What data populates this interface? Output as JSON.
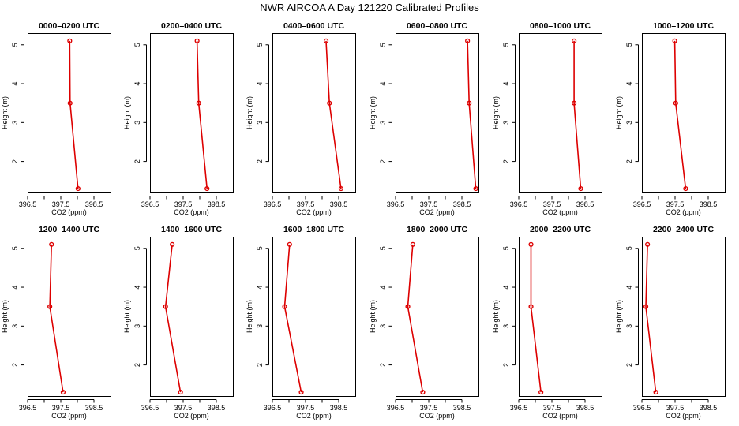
{
  "figure": {
    "title": "NWR AIRCOA A  Day 121220  Calibrated Profiles",
    "series_color": "#dd0000"
  },
  "chart_data": [
    {
      "type": "line",
      "title": "0000–0200 UTC",
      "xlabel": "CO2 (ppm)",
      "ylabel": "Height (m)",
      "xlim": [
        396.5,
        399.0
      ],
      "ylim": [
        1.2,
        5.3
      ],
      "x_ticks": [
        "396.5",
        "397.5",
        "398.5"
      ],
      "y_ticks": [
        "2",
        "3",
        "4",
        "5"
      ],
      "x": [
        398.02,
        397.78,
        397.77
      ],
      "y": [
        1.3,
        3.5,
        5.1
      ]
    },
    {
      "type": "line",
      "title": "0200–0400 UTC",
      "xlabel": "CO2 (ppm)",
      "ylabel": "Height (m)",
      "xlim": [
        396.5,
        399.0
      ],
      "ylim": [
        1.2,
        5.3
      ],
      "x_ticks": [
        "396.5",
        "397.5",
        "398.5"
      ],
      "y_ticks": [
        "2",
        "3",
        "4",
        "5"
      ],
      "x": [
        398.22,
        397.97,
        397.92
      ],
      "y": [
        1.3,
        3.5,
        5.1
      ]
    },
    {
      "type": "line",
      "title": "0400–0600 UTC",
      "xlabel": "CO2 (ppm)",
      "ylabel": "Height (m)",
      "xlim": [
        396.5,
        399.0
      ],
      "ylim": [
        1.2,
        5.3
      ],
      "x_ticks": [
        "396.5",
        "397.5",
        "398.5"
      ],
      "y_ticks": [
        "2",
        "3",
        "4",
        "5"
      ],
      "x": [
        398.57,
        398.22,
        398.12
      ],
      "y": [
        1.3,
        3.5,
        5.1
      ]
    },
    {
      "type": "line",
      "title": "0600–0800 UTC",
      "xlabel": "CO2 (ppm)",
      "ylabel": "Height (m)",
      "xlim": [
        396.5,
        399.0
      ],
      "ylim": [
        1.2,
        5.3
      ],
      "x_ticks": [
        "396.5",
        "397.5",
        "398.5"
      ],
      "y_ticks": [
        "2",
        "3",
        "4",
        "5"
      ],
      "x": [
        398.92,
        398.72,
        398.67
      ],
      "y": [
        1.3,
        3.5,
        5.1
      ]
    },
    {
      "type": "line",
      "title": "0800–1000 UTC",
      "xlabel": "CO2 (ppm)",
      "ylabel": "Height (m)",
      "xlim": [
        396.5,
        399.0
      ],
      "ylim": [
        1.2,
        5.3
      ],
      "x_ticks": [
        "396.5",
        "397.5",
        "398.5"
      ],
      "y_ticks": [
        "2",
        "3",
        "4",
        "5"
      ],
      "x": [
        398.37,
        398.17,
        398.17
      ],
      "y": [
        1.3,
        3.5,
        5.1
      ]
    },
    {
      "type": "line",
      "title": "1000–1200 UTC",
      "xlabel": "CO2 (ppm)",
      "ylabel": "Height (m)",
      "xlim": [
        396.5,
        399.0
      ],
      "ylim": [
        1.2,
        5.3
      ],
      "x_ticks": [
        "396.5",
        "397.5",
        "398.5"
      ],
      "y_ticks": [
        "2",
        "3",
        "4",
        "5"
      ],
      "x": [
        397.82,
        397.52,
        397.49
      ],
      "y": [
        1.3,
        3.5,
        5.1
      ]
    },
    {
      "type": "line",
      "title": "1200–1400 UTC",
      "xlabel": "CO2 (ppm)",
      "ylabel": "Height (m)",
      "xlim": [
        396.5,
        399.0
      ],
      "ylim": [
        1.2,
        5.3
      ],
      "x_ticks": [
        "396.5",
        "397.5",
        "398.5"
      ],
      "y_ticks": [
        "2",
        "3",
        "4",
        "5"
      ],
      "x": [
        397.57,
        397.17,
        397.22
      ],
      "y": [
        1.3,
        3.5,
        5.1
      ]
    },
    {
      "type": "line",
      "title": "1400–1600 UTC",
      "xlabel": "CO2 (ppm)",
      "ylabel": "Height (m)",
      "xlim": [
        396.5,
        399.0
      ],
      "ylim": [
        1.2,
        5.3
      ],
      "x_ticks": [
        "396.5",
        "397.5",
        "398.5"
      ],
      "y_ticks": [
        "2",
        "3",
        "4",
        "5"
      ],
      "x": [
        397.42,
        396.97,
        397.17
      ],
      "y": [
        1.3,
        3.5,
        5.1
      ]
    },
    {
      "type": "line",
      "title": "1600–1800 UTC",
      "xlabel": "CO2 (ppm)",
      "ylabel": "Height (m)",
      "xlim": [
        396.5,
        399.0
      ],
      "ylim": [
        1.2,
        5.3
      ],
      "x_ticks": [
        "396.5",
        "397.5",
        "398.5"
      ],
      "y_ticks": [
        "2",
        "3",
        "4",
        "5"
      ],
      "x": [
        397.37,
        396.87,
        397.02
      ],
      "y": [
        1.3,
        3.5,
        5.1
      ]
    },
    {
      "type": "line",
      "title": "1800–2000 UTC",
      "xlabel": "CO2 (ppm)",
      "ylabel": "Height (m)",
      "xlim": [
        396.5,
        399.0
      ],
      "ylim": [
        1.2,
        5.3
      ],
      "x_ticks": [
        "396.5",
        "397.5",
        "398.5"
      ],
      "y_ticks": [
        "2",
        "3",
        "4",
        "5"
      ],
      "x": [
        397.32,
        396.87,
        397.02
      ],
      "y": [
        1.3,
        3.5,
        5.1
      ]
    },
    {
      "type": "line",
      "title": "2000–2200 UTC",
      "xlabel": "CO2 (ppm)",
      "ylabel": "Height (m)",
      "xlim": [
        396.5,
        399.0
      ],
      "ylim": [
        1.2,
        5.3
      ],
      "x_ticks": [
        "396.5",
        "397.5",
        "398.5"
      ],
      "y_ticks": [
        "2",
        "3",
        "4",
        "5"
      ],
      "x": [
        397.17,
        396.87,
        396.87
      ],
      "y": [
        1.3,
        3.5,
        5.1
      ]
    },
    {
      "type": "line",
      "title": "2200–2400 UTC",
      "xlabel": "CO2 (ppm)",
      "ylabel": "Height (m)",
      "xlim": [
        396.5,
        399.0
      ],
      "ylim": [
        1.2,
        5.3
      ],
      "x_ticks": [
        "396.5",
        "397.5",
        "398.5"
      ],
      "y_ticks": [
        "2",
        "3",
        "4",
        "5"
      ],
      "x": [
        396.92,
        396.62,
        396.67
      ],
      "y": [
        1.3,
        3.5,
        5.1
      ]
    }
  ]
}
